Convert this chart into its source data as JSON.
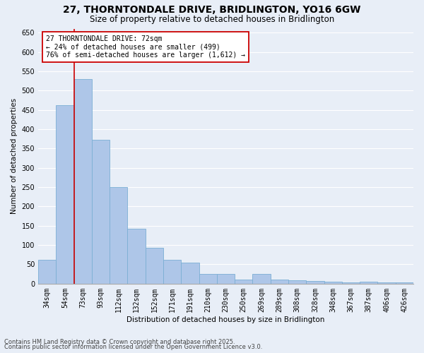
{
  "title1": "27, THORNTONDALE DRIVE, BRIDLINGTON, YO16 6GW",
  "title2": "Size of property relative to detached houses in Bridlington",
  "xlabel": "Distribution of detached houses by size in Bridlington",
  "ylabel": "Number of detached properties",
  "categories": [
    "34sqm",
    "54sqm",
    "73sqm",
    "93sqm",
    "112sqm",
    "132sqm",
    "152sqm",
    "171sqm",
    "191sqm",
    "210sqm",
    "230sqm",
    "250sqm",
    "269sqm",
    "289sqm",
    "308sqm",
    "328sqm",
    "348sqm",
    "367sqm",
    "387sqm",
    "406sqm",
    "426sqm"
  ],
  "values": [
    62,
    462,
    530,
    373,
    250,
    142,
    93,
    62,
    55,
    25,
    25,
    10,
    25,
    10,
    8,
    7,
    5,
    4,
    5,
    4,
    3
  ],
  "bar_color": "#aec6e8",
  "bar_edge_color": "#7bafd4",
  "bg_color": "#e8eef7",
  "grid_color": "#ffffff",
  "vline_x": 1.5,
  "annotation_text": "27 THORNTONDALE DRIVE: 72sqm\n← 24% of detached houses are smaller (499)\n76% of semi-detached houses are larger (1,612) →",
  "annotation_box_color": "#ffffff",
  "annotation_border_color": "#cc0000",
  "vline_color": "#cc0000",
  "ylim": [
    0,
    660
  ],
  "yticks": [
    0,
    50,
    100,
    150,
    200,
    250,
    300,
    350,
    400,
    450,
    500,
    550,
    600,
    650
  ],
  "footer1": "Contains HM Land Registry data © Crown copyright and database right 2025.",
  "footer2": "Contains public sector information licensed under the Open Government Licence v3.0.",
  "title_fontsize": 10,
  "subtitle_fontsize": 8.5,
  "axis_label_fontsize": 7.5,
  "tick_fontsize": 7,
  "annotation_fontsize": 7,
  "footer_fontsize": 6
}
